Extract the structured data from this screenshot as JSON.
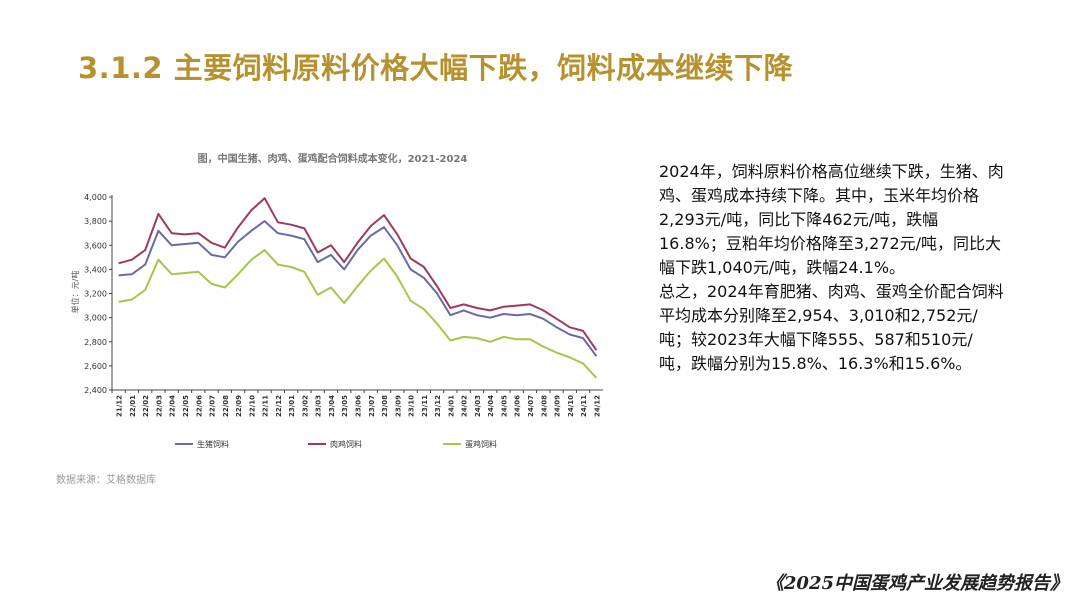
{
  "slide_title": "3.1.2 主要饲料原料价格大幅下跌，饲料成本继续下降",
  "chart_title": "图，中国生猪、肉鸡、蛋鸡配合饲料成本变化，2021-2024",
  "source": "数据来源：艾格数据库",
  "text": {
    "p1": "2024年，饲料原料价格高位继续下跌，生猪、肉鸡、蛋鸡成本持续下降。其中，玉米年均价格2,293元/吨，同比下降462元/吨，跌幅16.8%；豆粕年均价格降至3,272元/吨，同比大幅下跌1,040元/吨，跌幅24.1%。",
    "p2": "总之，2024年育肥猪、肉鸡、蛋鸡全价配合饲料平均成本分别降至2,954、3,010和2,752元/吨；较2023年大幅下降555、587和510元/吨，跌幅分别为15.8%、16.3%和15.6%。"
  },
  "footer": "《2025中国蛋鸡产业发展趋势报告》",
  "chart_data": {
    "type": "line",
    "title": "图，中国生猪、肉鸡、蛋鸡配合饲料成本变化，2021-2024",
    "ylabel": "单位：元/吨",
    "ylim": [
      2400,
      4000
    ],
    "yticks": [
      2400,
      2600,
      2800,
      3000,
      3200,
      3400,
      3600,
      3800,
      4000
    ],
    "ytick_labels": [
      "2,400",
      "2,600",
      "2,800",
      "3,000",
      "3,200",
      "3,400",
      "3,600",
      "3,800",
      "4,000"
    ],
    "x_labels": [
      "21/12",
      "22/01",
      "22/02",
      "22/03",
      "22/04",
      "22/05",
      "22/06",
      "22/07",
      "22/08",
      "22/09",
      "22/10",
      "22/11",
      "22/12",
      "23/01",
      "23/02",
      "23/03",
      "23/04",
      "23/05",
      "23/06",
      "23/07",
      "23/08",
      "23/09",
      "23/10",
      "23/11",
      "23/12",
      "24/01",
      "24/02",
      "24/03",
      "24/04",
      "24/05",
      "24/06",
      "24/07",
      "24/08",
      "24/09",
      "24/10",
      "24/11",
      "24/12"
    ],
    "legend_position": "bottom",
    "grid": false,
    "series": [
      {
        "name": "生猪饲料",
        "color": "#6a6aa8",
        "values": [
          3350,
          3360,
          3440,
          3720,
          3600,
          3610,
          3620,
          3520,
          3500,
          3630,
          3720,
          3800,
          3700,
          3680,
          3650,
          3460,
          3520,
          3400,
          3560,
          3680,
          3750,
          3600,
          3400,
          3330,
          3200,
          3020,
          3060,
          3020,
          3000,
          3030,
          3020,
          3030,
          2990,
          2920,
          2860,
          2830,
          2680
        ]
      },
      {
        "name": "肉鸡饲料",
        "color": "#9e3a5c",
        "values": [
          3450,
          3480,
          3560,
          3860,
          3700,
          3690,
          3700,
          3620,
          3580,
          3750,
          3890,
          3990,
          3790,
          3770,
          3740,
          3540,
          3600,
          3460,
          3620,
          3760,
          3850,
          3690,
          3490,
          3420,
          3260,
          3080,
          3110,
          3080,
          3060,
          3090,
          3100,
          3110,
          3060,
          2990,
          2920,
          2890,
          2730
        ]
      },
      {
        "name": "蛋鸡饲料",
        "color": "#a3c747",
        "values": [
          3130,
          3150,
          3230,
          3480,
          3360,
          3370,
          3380,
          3280,
          3250,
          3360,
          3480,
          3560,
          3440,
          3420,
          3380,
          3190,
          3250,
          3120,
          3260,
          3390,
          3490,
          3340,
          3140,
          3070,
          2950,
          2810,
          2840,
          2830,
          2800,
          2840,
          2820,
          2820,
          2760,
          2710,
          2670,
          2620,
          2500
        ]
      }
    ]
  }
}
